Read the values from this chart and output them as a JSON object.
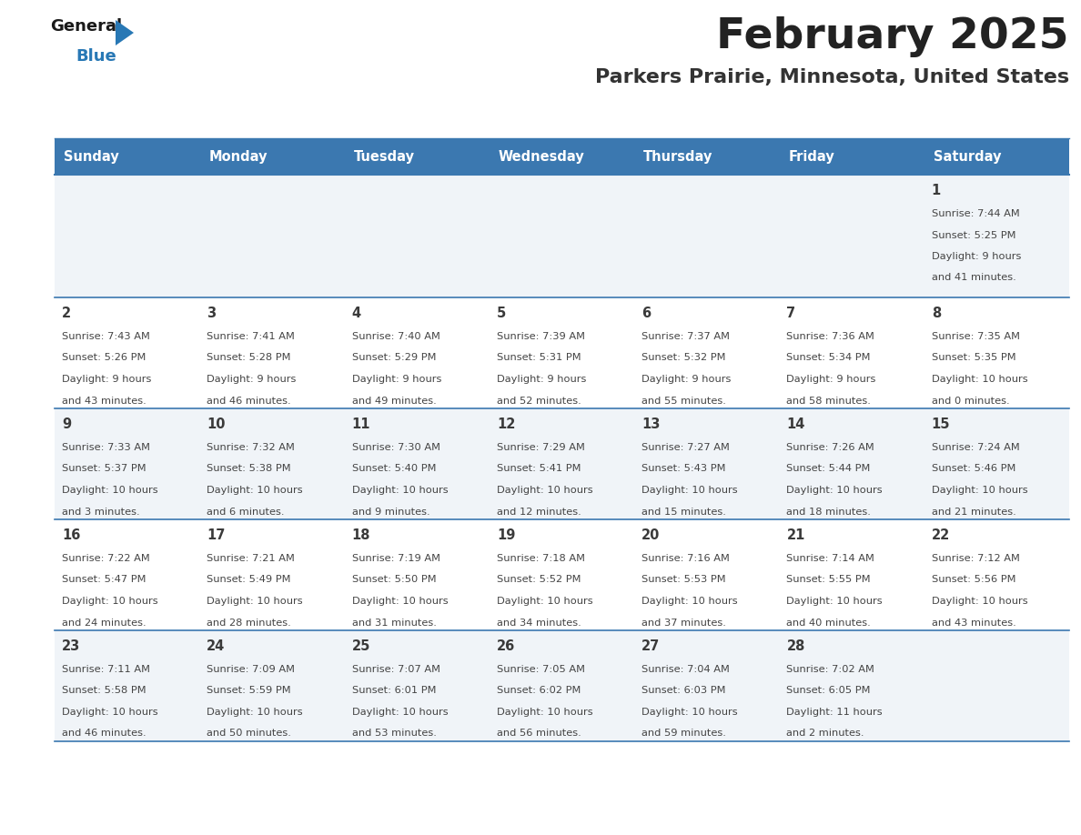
{
  "title": "February 2025",
  "subtitle": "Parkers Prairie, Minnesota, United States",
  "header_bg_color": "#3b78b0",
  "header_text_color": "#ffffff",
  "title_color": "#222222",
  "subtitle_color": "#333333",
  "day_names": [
    "Sunday",
    "Monday",
    "Tuesday",
    "Wednesday",
    "Thursday",
    "Friday",
    "Saturday"
  ],
  "cell_bg_even": "#f0f4f8",
  "cell_bg_odd": "#ffffff",
  "border_color": "#3b78b0",
  "border_color_dark": "#2a5a8a",
  "day_num_color": "#3a3a3a",
  "info_color": "#444444",
  "logo_general_color": "#1a1a1a",
  "logo_blue_color": "#2878b5",
  "logo_triangle_color": "#2878b5",
  "calendar_data": [
    [
      null,
      null,
      null,
      null,
      null,
      null,
      {
        "day": 1,
        "sunrise": "7:44 AM",
        "sunset": "5:25 PM",
        "daylight": "9 hours and 41 minutes."
      }
    ],
    [
      {
        "day": 2,
        "sunrise": "7:43 AM",
        "sunset": "5:26 PM",
        "daylight": "9 hours and 43 minutes."
      },
      {
        "day": 3,
        "sunrise": "7:41 AM",
        "sunset": "5:28 PM",
        "daylight": "9 hours and 46 minutes."
      },
      {
        "day": 4,
        "sunrise": "7:40 AM",
        "sunset": "5:29 PM",
        "daylight": "9 hours and 49 minutes."
      },
      {
        "day": 5,
        "sunrise": "7:39 AM",
        "sunset": "5:31 PM",
        "daylight": "9 hours and 52 minutes."
      },
      {
        "day": 6,
        "sunrise": "7:37 AM",
        "sunset": "5:32 PM",
        "daylight": "9 hours and 55 minutes."
      },
      {
        "day": 7,
        "sunrise": "7:36 AM",
        "sunset": "5:34 PM",
        "daylight": "9 hours and 58 minutes."
      },
      {
        "day": 8,
        "sunrise": "7:35 AM",
        "sunset": "5:35 PM",
        "daylight": "10 hours and 0 minutes."
      }
    ],
    [
      {
        "day": 9,
        "sunrise": "7:33 AM",
        "sunset": "5:37 PM",
        "daylight": "10 hours and 3 minutes."
      },
      {
        "day": 10,
        "sunrise": "7:32 AM",
        "sunset": "5:38 PM",
        "daylight": "10 hours and 6 minutes."
      },
      {
        "day": 11,
        "sunrise": "7:30 AM",
        "sunset": "5:40 PM",
        "daylight": "10 hours and 9 minutes."
      },
      {
        "day": 12,
        "sunrise": "7:29 AM",
        "sunset": "5:41 PM",
        "daylight": "10 hours and 12 minutes."
      },
      {
        "day": 13,
        "sunrise": "7:27 AM",
        "sunset": "5:43 PM",
        "daylight": "10 hours and 15 minutes."
      },
      {
        "day": 14,
        "sunrise": "7:26 AM",
        "sunset": "5:44 PM",
        "daylight": "10 hours and 18 minutes."
      },
      {
        "day": 15,
        "sunrise": "7:24 AM",
        "sunset": "5:46 PM",
        "daylight": "10 hours and 21 minutes."
      }
    ],
    [
      {
        "day": 16,
        "sunrise": "7:22 AM",
        "sunset": "5:47 PM",
        "daylight": "10 hours and 24 minutes."
      },
      {
        "day": 17,
        "sunrise": "7:21 AM",
        "sunset": "5:49 PM",
        "daylight": "10 hours and 28 minutes."
      },
      {
        "day": 18,
        "sunrise": "7:19 AM",
        "sunset": "5:50 PM",
        "daylight": "10 hours and 31 minutes."
      },
      {
        "day": 19,
        "sunrise": "7:18 AM",
        "sunset": "5:52 PM",
        "daylight": "10 hours and 34 minutes."
      },
      {
        "day": 20,
        "sunrise": "7:16 AM",
        "sunset": "5:53 PM",
        "daylight": "10 hours and 37 minutes."
      },
      {
        "day": 21,
        "sunrise": "7:14 AM",
        "sunset": "5:55 PM",
        "daylight": "10 hours and 40 minutes."
      },
      {
        "day": 22,
        "sunrise": "7:12 AM",
        "sunset": "5:56 PM",
        "daylight": "10 hours and 43 minutes."
      }
    ],
    [
      {
        "day": 23,
        "sunrise": "7:11 AM",
        "sunset": "5:58 PM",
        "daylight": "10 hours and 46 minutes."
      },
      {
        "day": 24,
        "sunrise": "7:09 AM",
        "sunset": "5:59 PM",
        "daylight": "10 hours and 50 minutes."
      },
      {
        "day": 25,
        "sunrise": "7:07 AM",
        "sunset": "6:01 PM",
        "daylight": "10 hours and 53 minutes."
      },
      {
        "day": 26,
        "sunrise": "7:05 AM",
        "sunset": "6:02 PM",
        "daylight": "10 hours and 56 minutes."
      },
      {
        "day": 27,
        "sunrise": "7:04 AM",
        "sunset": "6:03 PM",
        "daylight": "10 hours and 59 minutes."
      },
      {
        "day": 28,
        "sunrise": "7:02 AM",
        "sunset": "6:05 PM",
        "daylight": "11 hours and 2 minutes."
      },
      null
    ]
  ]
}
